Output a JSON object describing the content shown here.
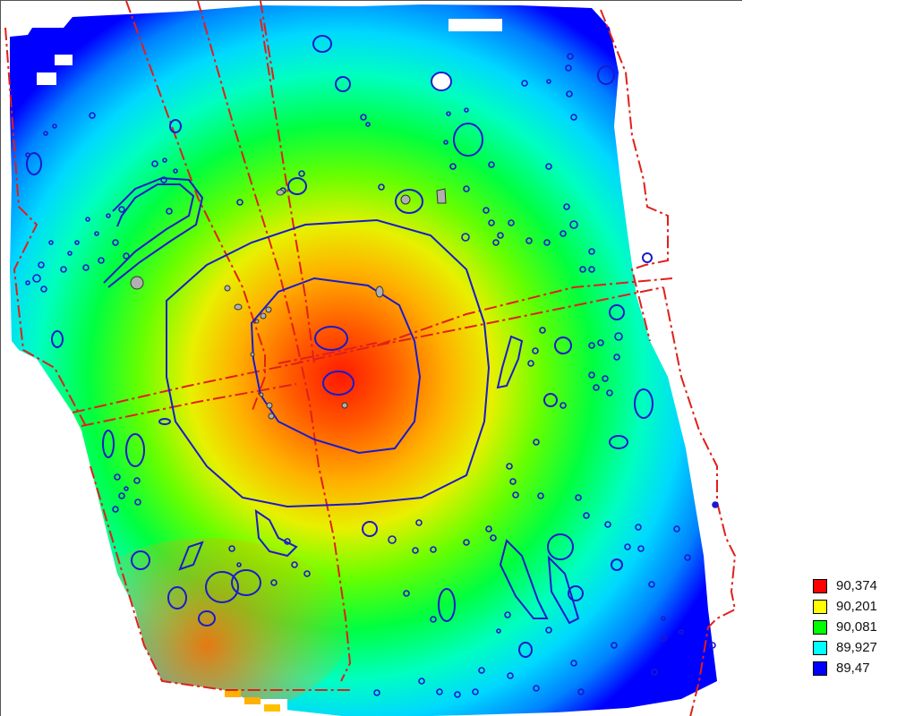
{
  "legend": {
    "items": [
      {
        "label": "90,374",
        "color": "#ff0000"
      },
      {
        "label": "90,201",
        "color": "#ffff00"
      },
      {
        "label": "90,081",
        "color": "#00ff00"
      },
      {
        "label": "89,927",
        "color": "#00ffff"
      },
      {
        "label": "89,47",
        "color": "#0000ff"
      }
    ]
  },
  "colors": {
    "contour": "#1a1acc",
    "boundary": "#e0201a",
    "background": "#ffffff",
    "feature_fill": "#b0b0b0"
  }
}
